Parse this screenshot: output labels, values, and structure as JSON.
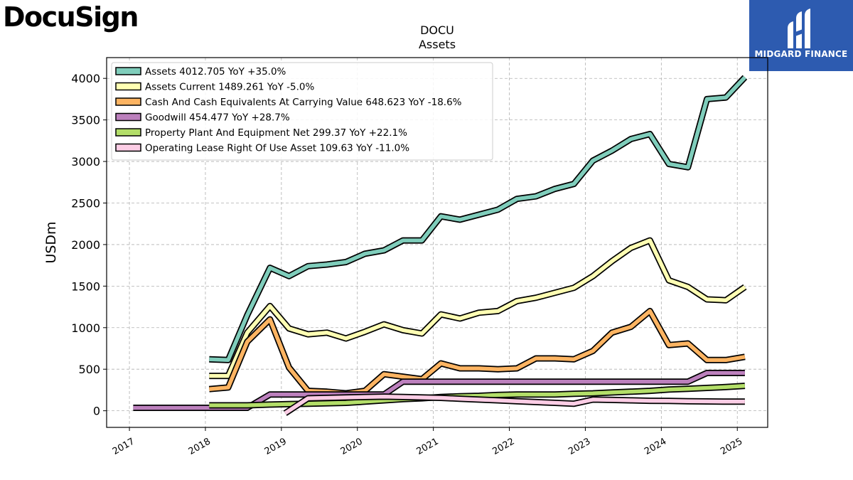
{
  "brand": {
    "left_logo_text": "DocuSign",
    "right_logo_text": "MIDGARD FINANCE"
  },
  "chart_data": {
    "type": "line",
    "title": "DOCU",
    "subtitle": "Assets",
    "xlabel": "",
    "ylabel": "USDm",
    "xlim": [
      2016.7,
      2025.4
    ],
    "ylim": [
      -200,
      4250
    ],
    "yticks": [
      0,
      500,
      1000,
      1500,
      2000,
      2500,
      3000,
      3500,
      4000
    ],
    "xticks": [
      "2017",
      "2018",
      "2019",
      "2020",
      "2021",
      "2022",
      "2023",
      "2024",
      "2025"
    ],
    "grid": true,
    "legend_position": "top-left",
    "series": [
      {
        "name": "Assets",
        "legend": "Assets  4012.705 YoY +35.0%",
        "color": "#7fcdbb",
        "x": [
          2018.05,
          2018.3,
          2018.55,
          2018.85,
          2019.1,
          2019.35,
          2019.6,
          2019.85,
          2020.1,
          2020.35,
          2020.6,
          2020.85,
          2021.1,
          2021.35,
          2021.6,
          2021.85,
          2022.1,
          2022.35,
          2022.6,
          2022.85,
          2023.1,
          2023.35,
          2023.6,
          2023.85,
          2024.1,
          2024.35,
          2024.6,
          2024.85,
          2025.1
        ],
        "values": [
          620,
          610,
          1150,
          1720,
          1620,
          1740,
          1760,
          1790,
          1890,
          1930,
          2050,
          2050,
          2340,
          2300,
          2360,
          2420,
          2550,
          2580,
          2670,
          2730,
          3010,
          3130,
          3270,
          3330,
          2970,
          2930,
          3750,
          3770,
          4012.705
        ]
      },
      {
        "name": "Assets Current",
        "legend": "Assets Current  1489.261 YoY -5.0%",
        "color": "#ffffb3",
        "x": [
          2018.05,
          2018.3,
          2018.55,
          2018.85,
          2019.1,
          2019.35,
          2019.6,
          2019.85,
          2020.1,
          2020.35,
          2020.6,
          2020.85,
          2021.1,
          2021.35,
          2021.6,
          2021.85,
          2022.1,
          2022.35,
          2022.6,
          2022.85,
          2023.1,
          2023.35,
          2023.6,
          2023.85,
          2024.1,
          2024.35,
          2024.6,
          2024.85,
          2025.1
        ],
        "values": [
          420,
          420,
          940,
          1260,
          990,
          920,
          940,
          870,
          950,
          1040,
          970,
          930,
          1160,
          1110,
          1180,
          1200,
          1320,
          1360,
          1420,
          1480,
          1620,
          1800,
          1960,
          2050,
          1570,
          1490,
          1340,
          1330,
          1489.261
        ]
      },
      {
        "name": "Cash And Cash Equivalents At Carrying Value",
        "legend": "Cash And Cash Equivalents At Carrying Value  648.623 YoY -18.6%",
        "color": "#fdb462",
        "x": [
          2018.05,
          2018.3,
          2018.55,
          2018.85,
          2019.1,
          2019.35,
          2019.6,
          2019.85,
          2020.1,
          2020.35,
          2020.6,
          2020.85,
          2021.1,
          2021.35,
          2021.6,
          2021.85,
          2022.1,
          2022.35,
          2022.6,
          2022.85,
          2023.1,
          2023.35,
          2023.6,
          2023.85,
          2024.1,
          2024.35,
          2024.6,
          2024.85,
          2025.1
        ],
        "values": [
          260,
          280,
          830,
          1100,
          520,
          240,
          230,
          210,
          240,
          440,
          410,
          380,
          570,
          510,
          510,
          500,
          510,
          630,
          630,
          620,
          720,
          940,
          1010,
          1200,
          790,
          810,
          610,
          610,
          648.623
        ]
      },
      {
        "name": "Goodwill",
        "legend": "Goodwill  454.477 YoY +28.7%",
        "color": "#bc80bd",
        "x": [
          2017.05,
          2018.55,
          2018.85,
          2019.1,
          2019.35,
          2019.6,
          2019.85,
          2020.1,
          2020.35,
          2020.6,
          2020.85,
          2021.1,
          2021.35,
          2021.6,
          2021.85,
          2022.1,
          2022.35,
          2022.6,
          2022.85,
          2023.1,
          2023.35,
          2023.6,
          2023.85,
          2024.1,
          2024.35,
          2024.6,
          2024.85,
          2025.1
        ],
        "values": [
          35,
          35,
          195,
          195,
          195,
          195,
          195,
          195,
          195,
          350,
          350,
          350,
          350,
          350,
          350,
          350,
          350,
          350,
          350,
          350,
          350,
          350,
          350,
          350,
          350,
          454.477,
          454.477,
          454.477
        ]
      },
      {
        "name": "Property Plant And Equipment Net",
        "legend": "Property Plant And Equipment Net  299.37 YoY +22.1%",
        "color": "#b3de69",
        "x": [
          2018.05,
          2018.3,
          2018.55,
          2018.85,
          2019.1,
          2019.35,
          2019.6,
          2019.85,
          2020.1,
          2020.35,
          2020.6,
          2020.85,
          2021.1,
          2021.35,
          2021.6,
          2021.85,
          2022.1,
          2022.35,
          2022.6,
          2022.85,
          2023.1,
          2023.35,
          2023.6,
          2023.85,
          2024.1,
          2024.35,
          2024.6,
          2024.85,
          2025.1
        ],
        "values": [
          65,
          65,
          65,
          75,
          80,
          85,
          90,
          95,
          110,
          125,
          140,
          150,
          165,
          175,
          180,
          190,
          195,
          195,
          195,
          205,
          210,
          220,
          230,
          240,
          255,
          265,
          275,
          285,
          299.37
        ]
      },
      {
        "name": "Operating Lease Right Of Use Asset",
        "legend": "Operating Lease Right Of Use Asset  109.63 YoY -11.0%",
        "color": "#fccde5",
        "x": [
          2019.05,
          2019.35,
          2019.6,
          2019.85,
          2020.1,
          2020.35,
          2020.6,
          2020.85,
          2021.1,
          2021.35,
          2021.6,
          2021.85,
          2022.1,
          2022.35,
          2022.6,
          2022.85,
          2023.1,
          2023.35,
          2023.6,
          2023.85,
          2024.1,
          2024.35,
          2024.6,
          2024.85,
          2025.1
        ],
        "values": [
          -30,
          150,
          155,
          160,
          165,
          170,
          165,
          160,
          155,
          145,
          135,
          125,
          115,
          105,
          95,
          85,
          135,
          130,
          125,
          120,
          118,
          115,
          112,
          110,
          109.63
        ]
      }
    ]
  }
}
